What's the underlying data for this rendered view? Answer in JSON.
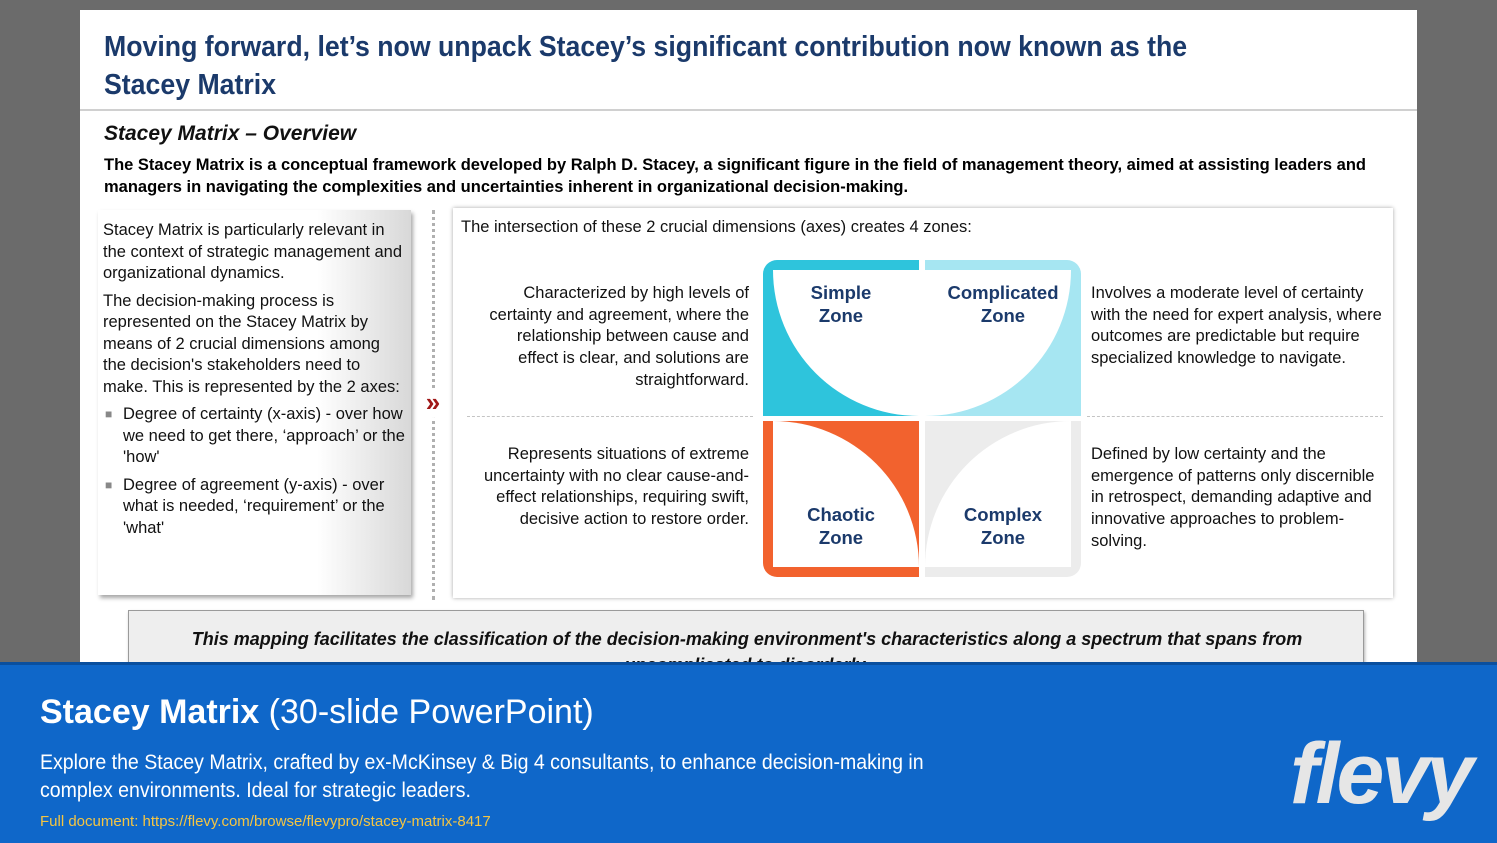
{
  "slide": {
    "title": "Moving forward, let’s now unpack Stacey’s significant contribution now known as the Stacey Matrix",
    "subtitle": "Stacey Matrix – Overview",
    "intro": "The Stacey Matrix is a conceptual framework developed by Ralph D. Stacey, a significant figure in the field of management theory, aimed at assisting leaders and managers in navigating the complexities and uncertainties inherent in organizational decision-making.",
    "left": {
      "para1": "Stacey Matrix is particularly relevant in the context of strategic management and organizational dynamics.",
      "para2": "The decision-making process is represented on the Stacey Matrix by means of 2 crucial dimensions among the decision's stakeholders need to make. This is represented by the 2 axes:",
      "bullets": [
        "Degree of certainty (x-axis) - over how we need to get there, ‘approach’ or the 'how'",
        "Degree of agreement (y-axis) - over what is needed, ‘requirement’ or the 'what'"
      ]
    },
    "right": {
      "intro": "The intersection of these 2 crucial dimensions (axes) creates 4 zones:",
      "zones": {
        "simple": {
          "label": "Simple Zone",
          "color": "#2ec4dc",
          "desc": "Characterized by high levels of certainty and agreement, where the relationship between cause and effect is clear, and solutions are straightforward."
        },
        "complicated": {
          "label": "Complicated Zone",
          "color": "#a6e6f2",
          "desc": "Involves a moderate level of certainty with the need for expert analysis, where outcomes are predictable but require specialized knowledge to navigate."
        },
        "chaotic": {
          "label": "Chaotic Zone",
          "color": "#f2622e",
          "desc": "Represents situations of extreme uncertainty with no clear cause-and-effect relationships, requiring swift, decisive action to restore order."
        },
        "complex": {
          "label": "Complex Zone",
          "color": "#ececec",
          "desc": "Defined by low certainty and the emergence of patterns only discernible in retrospect, demanding adaptive and innovative approaches to problem-solving."
        }
      }
    },
    "bottom": "This mapping facilitates the classification of the decision-making environment's characteristics along a spectrum that spans from uncomplicated to disorderly."
  },
  "banner": {
    "title_bold": "Stacey Matrix",
    "title_rest": " (30-slide PowerPoint)",
    "description": "Explore the Stacey Matrix, crafted by ex-McKinsey & Big 4 consultants, to enhance decision-making in complex environments. Ideal for strategic leaders.",
    "link": "Full document: https://flevy.com/browse/flevypro/stacey-matrix-8417",
    "logo": "flevy"
  }
}
